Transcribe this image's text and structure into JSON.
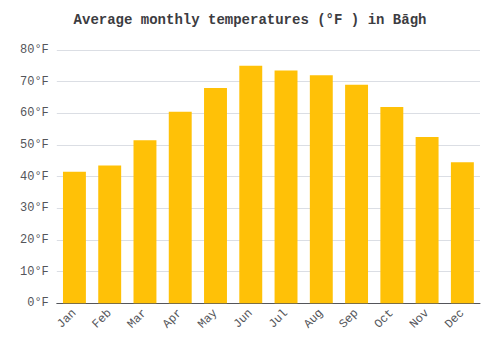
{
  "chart_data": {
    "type": "bar",
    "title": "Average monthly temperatures (°F ) in Bāgh",
    "categories": [
      "Jan",
      "Feb",
      "Mar",
      "Apr",
      "May",
      "Jun",
      "Jul",
      "Aug",
      "Sep",
      "Oct",
      "Nov",
      "Dec"
    ],
    "values": [
      41.5,
      43.5,
      51.5,
      60.5,
      68.0,
      75.0,
      73.5,
      72.0,
      69.0,
      62.0,
      52.5,
      44.5
    ],
    "color": "#FFC107",
    "ylim": [
      0,
      80
    ],
    "yticks": [
      {
        "value": 0,
        "label": "0°F"
      },
      {
        "value": 10,
        "label": "10°F"
      },
      {
        "value": 20,
        "label": "20°F"
      },
      {
        "value": 30,
        "label": "30°F"
      },
      {
        "value": 40,
        "label": "40°F"
      },
      {
        "value": 50,
        "label": "50°F"
      },
      {
        "value": 60,
        "label": "60°F"
      },
      {
        "value": 70,
        "label": "70°F"
      },
      {
        "value": 80,
        "label": "80°F"
      }
    ],
    "grid": true
  }
}
